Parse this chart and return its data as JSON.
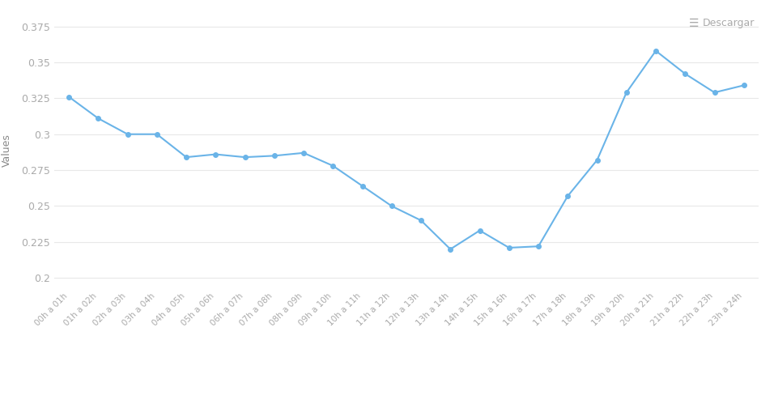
{
  "x_labels": [
    "00h a 01h",
    "01h a 02h",
    "02h a 03h",
    "03h a 04h",
    "04h a 05h",
    "05h a 06h",
    "06h a 07h",
    "07h a 08h",
    "08h a 09h",
    "09h a 10h",
    "10h a 11h",
    "11h a 12h",
    "12h a 13h",
    "13h a 14h",
    "14h a 15h",
    "15h a 16h",
    "16h a 17h",
    "17h a 18h",
    "18h a 19h",
    "19h a 20h",
    "20h a 21h",
    "21h a 22h",
    "22h a 23h",
    "23h a 24h"
  ],
  "y_values": [
    0.326,
    0.311,
    0.3,
    0.3,
    0.284,
    0.286,
    0.284,
    0.285,
    0.287,
    0.278,
    0.264,
    0.25,
    0.24,
    0.22,
    0.233,
    0.221,
    0.222,
    0.257,
    0.282,
    0.329,
    0.358,
    0.342,
    0.329,
    0.334
  ],
  "line_color": "#6ab4e8",
  "marker": "o",
  "marker_size": 4,
  "line_width": 1.5,
  "y_label": "Values",
  "ylim": [
    0.193,
    0.385
  ],
  "yticks": [
    0.2,
    0.225,
    0.25,
    0.275,
    0.3,
    0.325,
    0.35,
    0.375
  ],
  "ytick_labels": [
    "0.2",
    "0.225",
    "0.25",
    "0.275",
    "0.3",
    "0.325",
    "0.35",
    "0.375"
  ],
  "background_color": "#ffffff",
  "grid_color": "#e8e8e8",
  "text_color": "#aaaaaa",
  "xtick_color": "#aaaaaa",
  "ylabel_color": "#888888",
  "descargar_text": "Descargar",
  "xlabel_fontsize": 7.5,
  "ylabel_fontsize": 9,
  "legend_fontsize": 9,
  "ytick_fontsize": 9,
  "xtick_fontsize": 7.5
}
